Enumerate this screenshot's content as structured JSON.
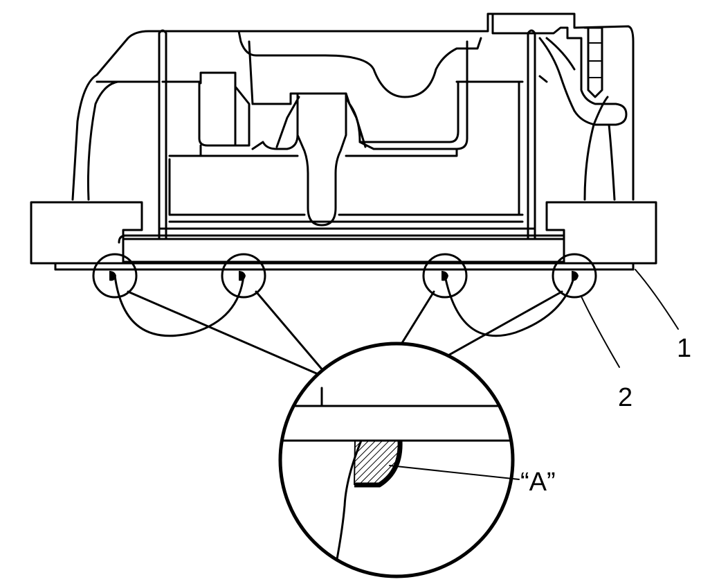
{
  "callouts": {
    "gasket": "1",
    "sealant_bead": "2",
    "detail": "“A”"
  },
  "colors": {
    "ink": "#000000",
    "paper": "#ffffff"
  }
}
